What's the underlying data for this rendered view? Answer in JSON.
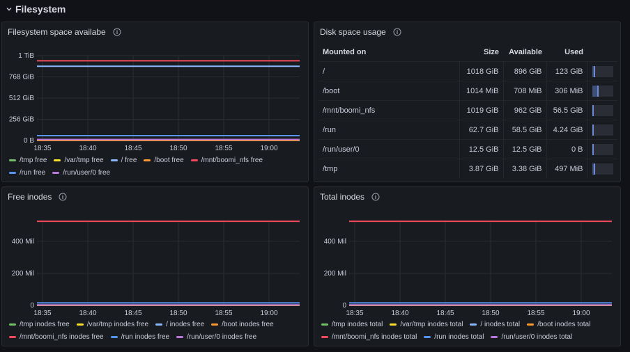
{
  "row": {
    "title": "Filesystem"
  },
  "panels": {
    "fs_space": {
      "title": "Filesystem space availabe"
    },
    "disk_usage": {
      "title": "Disk space usage"
    },
    "free_inodes": {
      "title": "Free inodes"
    },
    "total_inodes": {
      "title": "Total inodes"
    }
  },
  "table": {
    "columns": [
      "Mounted on",
      "Size",
      "Available",
      "Used"
    ],
    "rows": [
      {
        "mount": "/",
        "size": "1018 GiB",
        "available": "896 GiB",
        "used": "123 GiB",
        "used_fraction": 0.12
      },
      {
        "mount": "/boot",
        "size": "1014 MiB",
        "available": "708 MiB",
        "used": "306 MiB",
        "used_fraction": 0.3
      },
      {
        "mount": "/mnt/boomi_nfs",
        "size": "1019 GiB",
        "available": "962 GiB",
        "used": "56.5 GiB",
        "used_fraction": 0.055
      },
      {
        "mount": "/run",
        "size": "62.7 GiB",
        "available": "58.5 GiB",
        "used": "4.24 GiB",
        "used_fraction": 0.068
      },
      {
        "mount": "/run/user/0",
        "size": "12.5 GiB",
        "available": "12.5 GiB",
        "used": "0 B",
        "used_fraction": 0.0
      },
      {
        "mount": "/tmp",
        "size": "3.87 GiB",
        "available": "3.38 GiB",
        "used": "497 MiB",
        "used_fraction": 0.125
      }
    ]
  },
  "colors": {
    "green": "#73bf69",
    "yellow": "#fade2a",
    "lightblue": "#8ab8ff",
    "orange": "#ff9830",
    "red": "#f2495c",
    "blue": "#5794f2",
    "purple": "#b877d9"
  },
  "chart_data": [
    {
      "type": "line",
      "title": "Filesystem space availabe",
      "x": [
        "18:35",
        "18:40",
        "18:45",
        "18:50",
        "18:55",
        "19:00"
      ],
      "yticks": [
        "0 B",
        "256 GiB",
        "512 GiB",
        "768 GiB",
        "1 TiB"
      ],
      "ylim": [
        0,
        1024
      ],
      "series": [
        {
          "name": "/tmp free",
          "color": "green",
          "value": 3.38
        },
        {
          "name": "/var/tmp free",
          "color": "yellow",
          "value": 3.38
        },
        {
          "name": "/ free",
          "color": "lightblue",
          "value": 896
        },
        {
          "name": "/boot free",
          "color": "orange",
          "value": 0.69
        },
        {
          "name": "/mnt/boomi_nfs free",
          "color": "red",
          "value": 962
        },
        {
          "name": "/run free",
          "color": "blue",
          "value": 58.5
        },
        {
          "name": "/run/user/0 free",
          "color": "purple",
          "value": 12.5
        }
      ]
    },
    {
      "type": "line",
      "title": "Free inodes",
      "x": [
        "18:35",
        "18:40",
        "18:45",
        "18:50",
        "18:55",
        "19:00"
      ],
      "yticks": [
        "0",
        "200 Mil",
        "400 Mil"
      ],
      "ylim": [
        0,
        530
      ],
      "series": [
        {
          "name": "/tmp inodes free",
          "color": "green",
          "value": 1
        },
        {
          "name": "/var/tmp inodes free",
          "color": "yellow",
          "value": 1
        },
        {
          "name": "/ inodes free",
          "color": "lightblue",
          "value": 1
        },
        {
          "name": "/boot inodes free",
          "color": "orange",
          "value": 1
        },
        {
          "name": "/mnt/boomi_nfs inodes free",
          "color": "red",
          "value": 525
        },
        {
          "name": "/run inodes free",
          "color": "blue",
          "value": 16
        },
        {
          "name": "/run/user/0 inodes free",
          "color": "purple",
          "value": 3
        }
      ]
    },
    {
      "type": "line",
      "title": "Total inodes",
      "x": [
        "18:35",
        "18:40",
        "18:45",
        "18:50",
        "18:55",
        "19:00"
      ],
      "yticks": [
        "0",
        "200 Mil",
        "400 Mil"
      ],
      "ylim": [
        0,
        530
      ],
      "series": [
        {
          "name": "/tmp inodes total",
          "color": "green",
          "value": 1
        },
        {
          "name": "/var/tmp inodes total",
          "color": "yellow",
          "value": 1
        },
        {
          "name": "/ inodes total",
          "color": "lightblue",
          "value": 1
        },
        {
          "name": "/boot inodes total",
          "color": "orange",
          "value": 1
        },
        {
          "name": "/mnt/boomi_nfs inodes total",
          "color": "red",
          "value": 525
        },
        {
          "name": "/run inodes total",
          "color": "blue",
          "value": 16
        },
        {
          "name": "/run/user/0 inodes total",
          "color": "purple",
          "value": 3
        }
      ]
    }
  ]
}
